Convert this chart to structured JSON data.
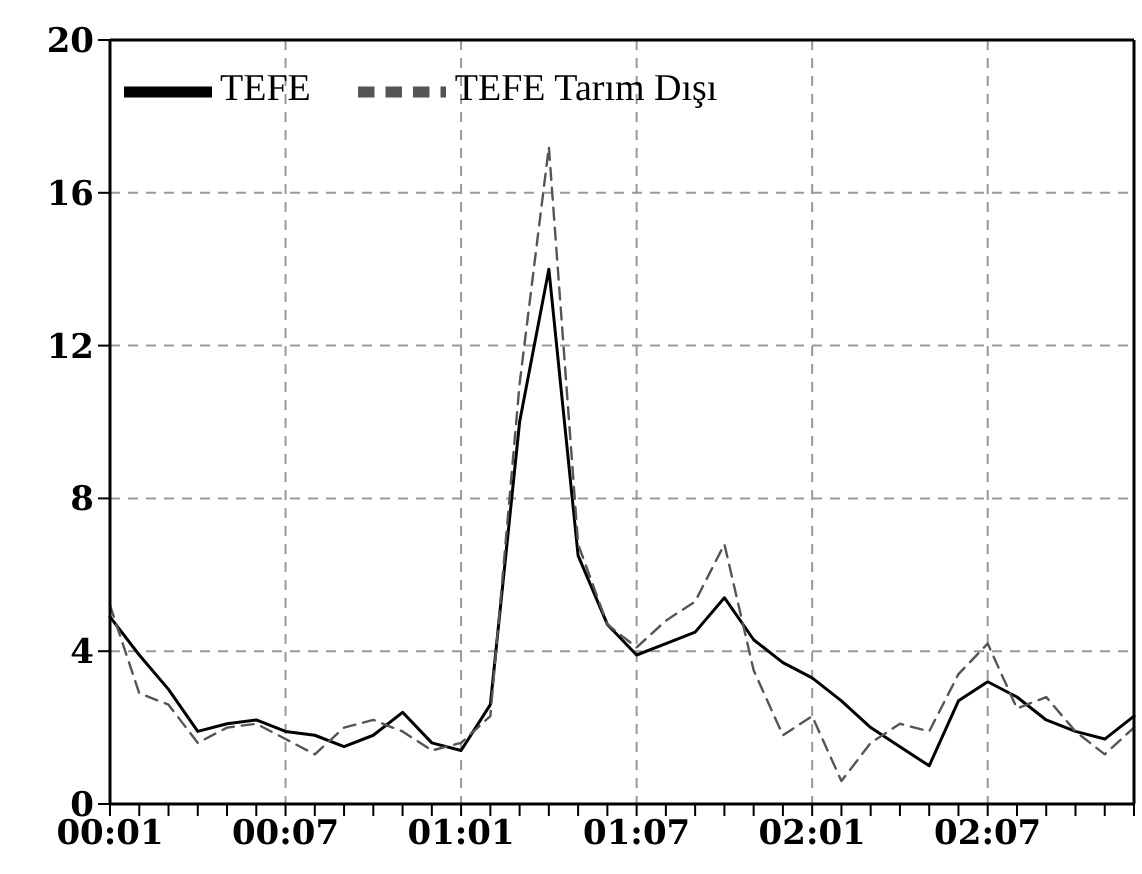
{
  "chart_data": {
    "type": "line",
    "categories": [
      "00:01",
      null,
      null,
      null,
      null,
      null,
      "00:07",
      null,
      null,
      null,
      null,
      null,
      "01:01",
      null,
      null,
      null,
      null,
      null,
      "01:07",
      null,
      null,
      null,
      null,
      null,
      "02:01",
      null,
      null,
      null,
      null,
      null,
      "02:07",
      null,
      null,
      null,
      null,
      null
    ],
    "series": [
      {
        "name": "TEFE",
        "color": "#000000",
        "line_style": "solid",
        "values": [
          4.9,
          3.9,
          3.0,
          1.9,
          2.1,
          2.2,
          1.9,
          1.8,
          1.5,
          1.8,
          2.4,
          1.6,
          1.4,
          2.6,
          10.0,
          14.0,
          6.5,
          4.7,
          3.9,
          4.2,
          4.5,
          5.4,
          4.3,
          3.7,
          3.3,
          2.7,
          2.0,
          1.5,
          1.0,
          2.7,
          3.2,
          2.8,
          2.2,
          1.9,
          1.7,
          2.3
        ]
      },
      {
        "name": "TEFE Tarım Dışı",
        "color": "#555555",
        "line_style": "dashed",
        "values": [
          5.2,
          2.9,
          2.6,
          1.6,
          2.0,
          2.1,
          1.7,
          1.3,
          2.0,
          2.2,
          1.9,
          1.4,
          1.6,
          2.3,
          11.0,
          17.2,
          6.8,
          4.7,
          4.1,
          4.8,
          5.3,
          6.8,
          3.5,
          1.8,
          2.3,
          0.6,
          1.6,
          2.1,
          1.9,
          3.4,
          4.2,
          2.5,
          2.8,
          1.9,
          1.3,
          2.0
        ]
      }
    ],
    "ylim": [
      0,
      20
    ],
    "yticks": [
      0,
      4,
      8,
      12,
      16,
      20
    ],
    "grid": true,
    "legend": "top left",
    "marker": "none"
  }
}
